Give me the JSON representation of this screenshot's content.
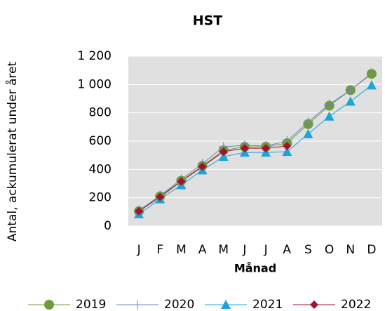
{
  "chart_data": {
    "type": "line",
    "title": "HST",
    "x_label": "Månad",
    "y_label": "Antal, ackumulerat under året",
    "categories": [
      "J",
      "F",
      "M",
      "A",
      "M",
      "J",
      "J",
      "A",
      "S",
      "O",
      "N",
      "D"
    ],
    "series": [
      {
        "name": "2019",
        "color": "#6f9b3b",
        "marker": "circle",
        "values": [
          105,
          210,
          320,
          425,
          535,
          560,
          560,
          585,
          720,
          850,
          960,
          1075
        ]
      },
      {
        "name": "2020",
        "color": "#6b86c8",
        "marker": "plus",
        "values": [
          110,
          215,
          330,
          440,
          560,
          570,
          565,
          600,
          735,
          860,
          960,
          1080
        ]
      },
      {
        "name": "2021",
        "color": "#1ea3da",
        "marker": "triangle",
        "values": [
          85,
          190,
          290,
          395,
          490,
          520,
          520,
          525,
          650,
          775,
          880,
          995
        ]
      },
      {
        "name": "2022",
        "color": "#a3122c",
        "marker": "diamond",
        "values": [
          105,
          205,
          315,
          420,
          525,
          550,
          550,
          565,
          null,
          null,
          null,
          null
        ]
      }
    ],
    "ylim": [
      0,
      1200
    ],
    "yticks": [
      0,
      200,
      400,
      600,
      800,
      {
        "value": 1000,
        "label": "1 000"
      },
      {
        "value": 1200,
        "label": "1 200"
      }
    ],
    "grid": true
  }
}
